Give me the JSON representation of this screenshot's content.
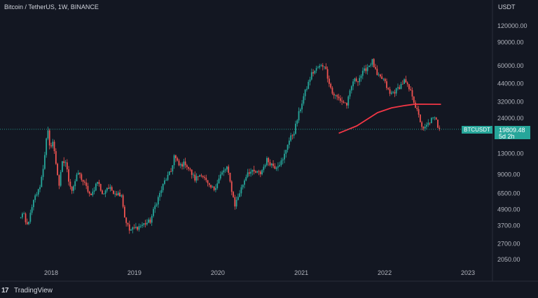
{
  "header": {
    "title": "Bitcoin / TetherUS, 1W, BINANCE",
    "axis_unit": "USDT"
  },
  "price_label": {
    "symbol": "BTCUSDT",
    "price": "19809.48",
    "countdown": "5d 2h"
  },
  "footer": {
    "logo_glyph": "17",
    "brand": "TradingView"
  },
  "colors": {
    "background": "#131722",
    "up": "#26a69a",
    "down": "#ef5350",
    "ma": "#f23645",
    "axis_text": "#b2b5be"
  },
  "chart_data": {
    "type": "candlestick",
    "title": "Bitcoin / TetherUS, 1W, BINANCE",
    "yscale": "log",
    "ylim": [
      1900,
      190000
    ],
    "y_ticks": [
      "120000.00",
      "90000.00",
      "60000.00",
      "44000.00",
      "32000.00",
      "24000.00",
      "13000.00",
      "9000.00",
      "6500.00",
      "4900.00",
      "3700.00",
      "2700.00",
      "2050.00"
    ],
    "x_ticks": [
      "2018",
      "2019",
      "2020",
      "2021",
      "2022",
      "2023"
    ],
    "current_price": 19809.48,
    "price_path": [
      [
        "2017-08-14",
        4200
      ],
      [
        "2017-09-01",
        4600
      ],
      [
        "2017-09-15",
        3600
      ],
      [
        "2017-10-01",
        4400
      ],
      [
        "2017-10-20",
        6000
      ],
      [
        "2017-11-10",
        7000
      ],
      [
        "2017-11-25",
        9500
      ],
      [
        "2017-12-10",
        16000
      ],
      [
        "2017-12-17",
        19500
      ],
      [
        "2017-12-25",
        14500
      ],
      [
        "2018-01-08",
        16000
      ],
      [
        "2018-01-22",
        11000
      ],
      [
        "2018-02-05",
        7500
      ],
      [
        "2018-02-19",
        11000
      ],
      [
        "2018-03-05",
        11200
      ],
      [
        "2018-03-19",
        8200
      ],
      [
        "2018-04-02",
        6900
      ],
      [
        "2018-04-30",
        9300
      ],
      [
        "2018-05-21",
        8000
      ],
      [
        "2018-06-25",
        6100
      ],
      [
        "2018-07-23",
        8200
      ],
      [
        "2018-08-13",
        6300
      ],
      [
        "2018-09-03",
        7200
      ],
      [
        "2018-10-15",
        6500
      ],
      [
        "2018-11-05",
        6400
      ],
      [
        "2018-11-19",
        4300
      ],
      [
        "2018-12-10",
        3400
      ],
      [
        "2019-01-14",
        3600
      ],
      [
        "2019-02-11",
        3800
      ],
      [
        "2019-03-11",
        4000
      ],
      [
        "2019-04-01",
        5200
      ],
      [
        "2019-05-13",
        8000
      ],
      [
        "2019-06-10",
        9500
      ],
      [
        "2019-06-24",
        12500
      ],
      [
        "2019-07-15",
        10500
      ],
      [
        "2019-08-12",
        11000
      ],
      [
        "2019-09-23",
        8300
      ],
      [
        "2019-10-21",
        9200
      ],
      [
        "2019-11-25",
        7200
      ],
      [
        "2019-12-16",
        7000
      ],
      [
        "2020-01-13",
        8900
      ],
      [
        "2020-02-10",
        10200
      ],
      [
        "2020-03-16",
        5300
      ],
      [
        "2020-04-13",
        7100
      ],
      [
        "2020-05-11",
        9500
      ],
      [
        "2020-07-06",
        9200
      ],
      [
        "2020-08-03",
        11600
      ],
      [
        "2020-09-07",
        10300
      ],
      [
        "2020-10-12",
        11500
      ],
      [
        "2020-11-02",
        15500
      ],
      [
        "2020-11-30",
        19000
      ],
      [
        "2020-12-21",
        26000
      ],
      [
        "2021-01-11",
        35000
      ],
      [
        "2021-02-15",
        52000
      ],
      [
        "2021-03-15",
        58000
      ],
      [
        "2021-04-12",
        61000
      ],
      [
        "2021-05-17",
        37000
      ],
      [
        "2021-06-21",
        33000
      ],
      [
        "2021-07-19",
        30500
      ],
      [
        "2021-08-16",
        46000
      ],
      [
        "2021-09-06",
        47000
      ],
      [
        "2021-10-11",
        57000
      ],
      [
        "2021-11-08",
        65000
      ],
      [
        "2021-11-29",
        50000
      ],
      [
        "2021-12-27",
        47000
      ],
      [
        "2022-01-24",
        36500
      ],
      [
        "2022-02-21",
        39000
      ],
      [
        "2022-03-28",
        46000
      ],
      [
        "2022-05-02",
        36000
      ],
      [
        "2022-05-16",
        29500
      ],
      [
        "2022-06-13",
        21000
      ],
      [
        "2022-06-20",
        19500
      ],
      [
        "2022-07-25",
        23500
      ],
      [
        "2022-08-15",
        24000
      ],
      [
        "2022-08-22",
        21000
      ],
      [
        "2022-08-29",
        19809.48
      ]
    ],
    "series": [
      {
        "name": "",
        "points": [
          [
            "2021-06-14",
            18500
          ],
          [
            "2021-09-01",
            21000
          ],
          [
            "2021-12-01",
            26500
          ],
          [
            "2022-02-01",
            28800
          ],
          [
            "2022-04-01",
            30000
          ],
          [
            "2022-05-15",
            30700
          ],
          [
            "2022-09-05",
            30600
          ]
        ]
      }
    ]
  }
}
